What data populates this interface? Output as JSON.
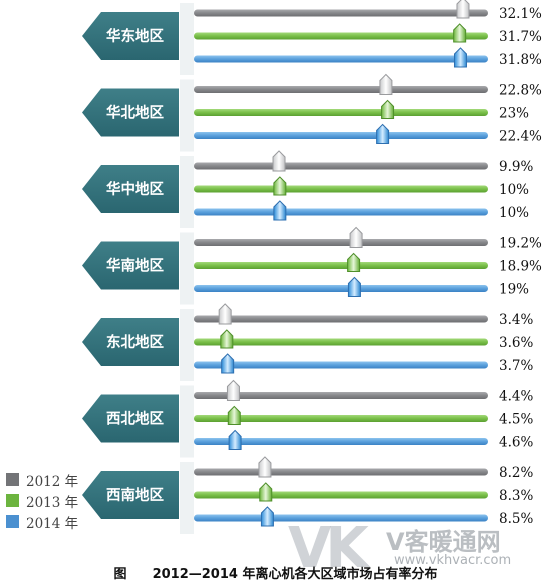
{
  "caption": {
    "label": "图",
    "title": "2012—2014 年离心机各大区域市场占有率分布"
  },
  "legend": [
    {
      "label": "2012 年",
      "color": "#737477"
    },
    {
      "label": "2013 年",
      "color": "#6cb43f"
    },
    {
      "label": "2014 年",
      "color": "#4b90d0"
    }
  ],
  "watermark": {
    "logo": "VK",
    "text": "V客暖通网",
    "url": "www.vkhvacr.com"
  },
  "chart_data": {
    "type": "bar",
    "xlim": [
      0,
      35
    ],
    "categories": [
      "华东地区",
      "华北地区",
      "华中地区",
      "华南地区",
      "东北地区",
      "西北地区",
      "西南地区"
    ],
    "series": [
      {
        "name": "2012 年",
        "color": "#8a8b8e",
        "values": [
          32.1,
          22.8,
          9.9,
          19.2,
          3.4,
          4.4,
          8.2
        ],
        "labels": [
          "32.1%",
          "22.8%",
          "9.9%",
          "19.2%",
          "3.4%",
          "4.4%",
          "8.2%"
        ]
      },
      {
        "name": "2013 年",
        "color": "#7cc04a",
        "values": [
          31.7,
          23,
          10,
          18.9,
          3.6,
          4.5,
          8.3
        ],
        "labels": [
          "31.7%",
          "23%",
          "10%",
          "18.9%",
          "3.6%",
          "4.5%",
          "8.3%"
        ]
      },
      {
        "name": "2014 年",
        "color": "#5aa0dc",
        "values": [
          31.8,
          22.4,
          10,
          19,
          3.7,
          4.6,
          8.5
        ],
        "labels": [
          "31.8%",
          "22.4%",
          "10%",
          "19%",
          "3.7%",
          "4.6%",
          "8.5%"
        ]
      }
    ]
  }
}
